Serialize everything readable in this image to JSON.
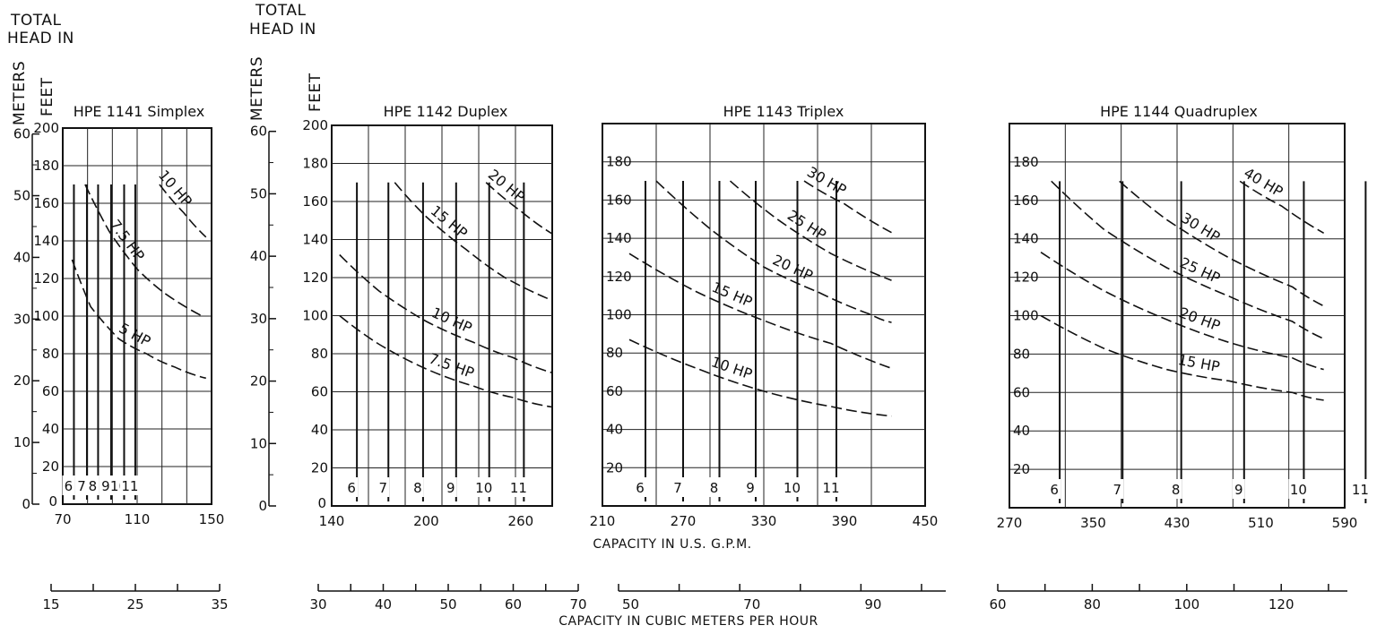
{
  "axis_titles": {
    "head_left": [
      "TOTAL",
      "HEAD IN"
    ],
    "head_right": [
      "TOTAL",
      "HEAD IN"
    ],
    "meters": "METERS",
    "feet": "FEET"
  },
  "captions": {
    "gpm": "CAPACITY IN U.S. G.P.M.",
    "m3h": "CAPACITY IN CUBIC METERS PER HOUR"
  },
  "chart_data": [
    {
      "type": "line",
      "title": "HPE 1141 Simplex",
      "xlabel": "CAPACITY IN U.S. G.P.M.",
      "ylabel": "TOTAL HEAD IN FEET",
      "xlim": [
        70,
        150
      ],
      "ylim": [
        0,
        200
      ],
      "x_ticks": [
        70,
        110,
        150
      ],
      "y_ticks": [
        20,
        40,
        60,
        80,
        100,
        120,
        140,
        160,
        180,
        200
      ],
      "meters_ticks": [
        0,
        10,
        20,
        30,
        40,
        50,
        60
      ],
      "m3h_ticks": [
        "15",
        "25",
        "35"
      ],
      "m3h_range": [
        15,
        35
      ],
      "impeller_labels": [
        "6",
        "7",
        "8",
        "9",
        "10",
        "11"
      ],
      "impeller_x": [
        76,
        83,
        89,
        96,
        103,
        109
      ],
      "series": [
        {
          "name": "5 HP",
          "x": [
            75,
            85,
            100,
            115,
            130,
            147
          ],
          "y": [
            130,
            105,
            88,
            80,
            73,
            67
          ]
        },
        {
          "name": "7.5 HP",
          "x": [
            82,
            95,
            110,
            125,
            145
          ],
          "y": [
            170,
            145,
            125,
            112,
            100
          ]
        },
        {
          "name": "10 HP",
          "x": [
            122,
            135,
            147
          ],
          "y": [
            170,
            155,
            142
          ]
        }
      ]
    },
    {
      "type": "line",
      "title": "HPE 1142 Duplex",
      "xlabel": "CAPACITY IN U.S. G.P.M.",
      "ylabel": "TOTAL HEAD IN FEET",
      "xlim": [
        140,
        280
      ],
      "ylim": [
        0,
        200
      ],
      "x_ticks": [
        140,
        200,
        260
      ],
      "y_ticks": [
        20,
        40,
        60,
        80,
        100,
        120,
        140,
        160,
        180,
        200
      ],
      "meters_ticks": [
        0,
        10,
        20,
        30,
        40,
        50,
        60
      ],
      "m3h_ticks": [
        "30",
        "40",
        "50",
        "60",
        "70"
      ],
      "m3h_range": [
        30,
        70
      ],
      "impeller_labels": [
        "6",
        "7",
        "8",
        "9",
        "10",
        "11"
      ],
      "impeller_x": [
        156,
        176,
        198,
        219,
        240,
        262
      ],
      "series": [
        {
          "name": "7.5 HP",
          "x": [
            145,
            170,
            200,
            230,
            255,
            280
          ],
          "y": [
            100,
            85,
            72,
            63,
            57,
            52
          ]
        },
        {
          "name": "10 HP",
          "x": [
            145,
            170,
            200,
            230,
            255,
            280
          ],
          "y": [
            132,
            113,
            97,
            86,
            78,
            70
          ]
        },
        {
          "name": "15 HP",
          "x": [
            180,
            200,
            225,
            250,
            280
          ],
          "y": [
            170,
            152,
            135,
            120,
            108
          ]
        },
        {
          "name": "20 HP",
          "x": [
            238,
            260,
            280
          ],
          "y": [
            170,
            155,
            143
          ]
        }
      ]
    },
    {
      "type": "line",
      "title": "HPE 1143 Triplex",
      "xlabel": "CAPACITY IN U.S. G.P.M.",
      "ylabel": "TOTAL HEAD IN FEET",
      "xlim": [
        210,
        450
      ],
      "ylim": [
        0,
        200
      ],
      "x_ticks": [
        210,
        270,
        330,
        390,
        450
      ],
      "y_ticks": [
        20,
        40,
        60,
        80,
        100,
        120,
        140,
        160,
        180,
        200
      ],
      "m3h_ticks": [
        "50",
        "70",
        "90"
      ],
      "m3h_range": [
        48,
        102
      ],
      "impeller_labels": [
        "6",
        "7",
        "8",
        "9",
        "10",
        "11"
      ],
      "impeller_x": [
        242,
        270,
        297,
        324,
        355,
        384
      ],
      "series": [
        {
          "name": "10 HP",
          "x": [
            230,
            280,
            330,
            380,
            425
          ],
          "y": [
            87,
            72,
            60,
            52,
            47
          ]
        },
        {
          "name": "15 HP",
          "x": [
            230,
            280,
            330,
            380,
            425
          ],
          "y": [
            132,
            112,
            97,
            85,
            72
          ]
        },
        {
          "name": "20 HP",
          "x": [
            250,
            290,
            330,
            370,
            410,
            425
          ],
          "y": [
            170,
            145,
            125,
            112,
            100,
            96
          ]
        },
        {
          "name": "25 HP",
          "x": [
            305,
            340,
            380,
            425
          ],
          "y": [
            170,
            150,
            132,
            118
          ]
        },
        {
          "name": "30 HP",
          "x": [
            360,
            390,
            425
          ],
          "y": [
            170,
            158,
            143
          ]
        }
      ]
    },
    {
      "type": "line",
      "title": "HPE 1144 Quadruplex",
      "xlabel": "CAPACITY IN U.S. G.P.M.",
      "ylabel": "TOTAL HEAD IN FEET",
      "xlim": [
        270,
        590
      ],
      "ylim": [
        0,
        200
      ],
      "x_ticks": [
        270,
        350,
        430,
        510,
        590
      ],
      "y_ticks": [
        20,
        40,
        60,
        80,
        100,
        120,
        140,
        160,
        180,
        200
      ],
      "m3h_ticks": [
        "60",
        "80",
        "100",
        "120"
      ],
      "m3h_range": [
        60,
        134
      ],
      "impeller_labels": [
        "6",
        "7",
        "8",
        "9",
        "10",
        "11"
      ],
      "impeller_x": [
        318,
        378,
        434,
        494,
        551,
        610
      ],
      "series": [
        {
          "name": "15 HP",
          "x": [
            300,
            360,
            420,
            480,
            540,
            570
          ],
          "y": [
            100,
            83,
            72,
            66,
            60,
            56
          ]
        },
        {
          "name": "20 HP",
          "x": [
            300,
            360,
            420,
            480,
            540,
            570
          ],
          "y": [
            133,
            113,
            98,
            86,
            78,
            72
          ]
        },
        {
          "name": "25 HP",
          "x": [
            310,
            360,
            420,
            480,
            540,
            570
          ],
          "y": [
            170,
            145,
            125,
            110,
            97,
            88
          ]
        },
        {
          "name": "30 HP",
          "x": [
            375,
            420,
            480,
            540,
            570
          ],
          "y": [
            170,
            150,
            130,
            115,
            105
          ]
        },
        {
          "name": "40 HP",
          "x": [
            490,
            530,
            570
          ],
          "y": [
            170,
            157,
            143
          ]
        }
      ]
    }
  ]
}
